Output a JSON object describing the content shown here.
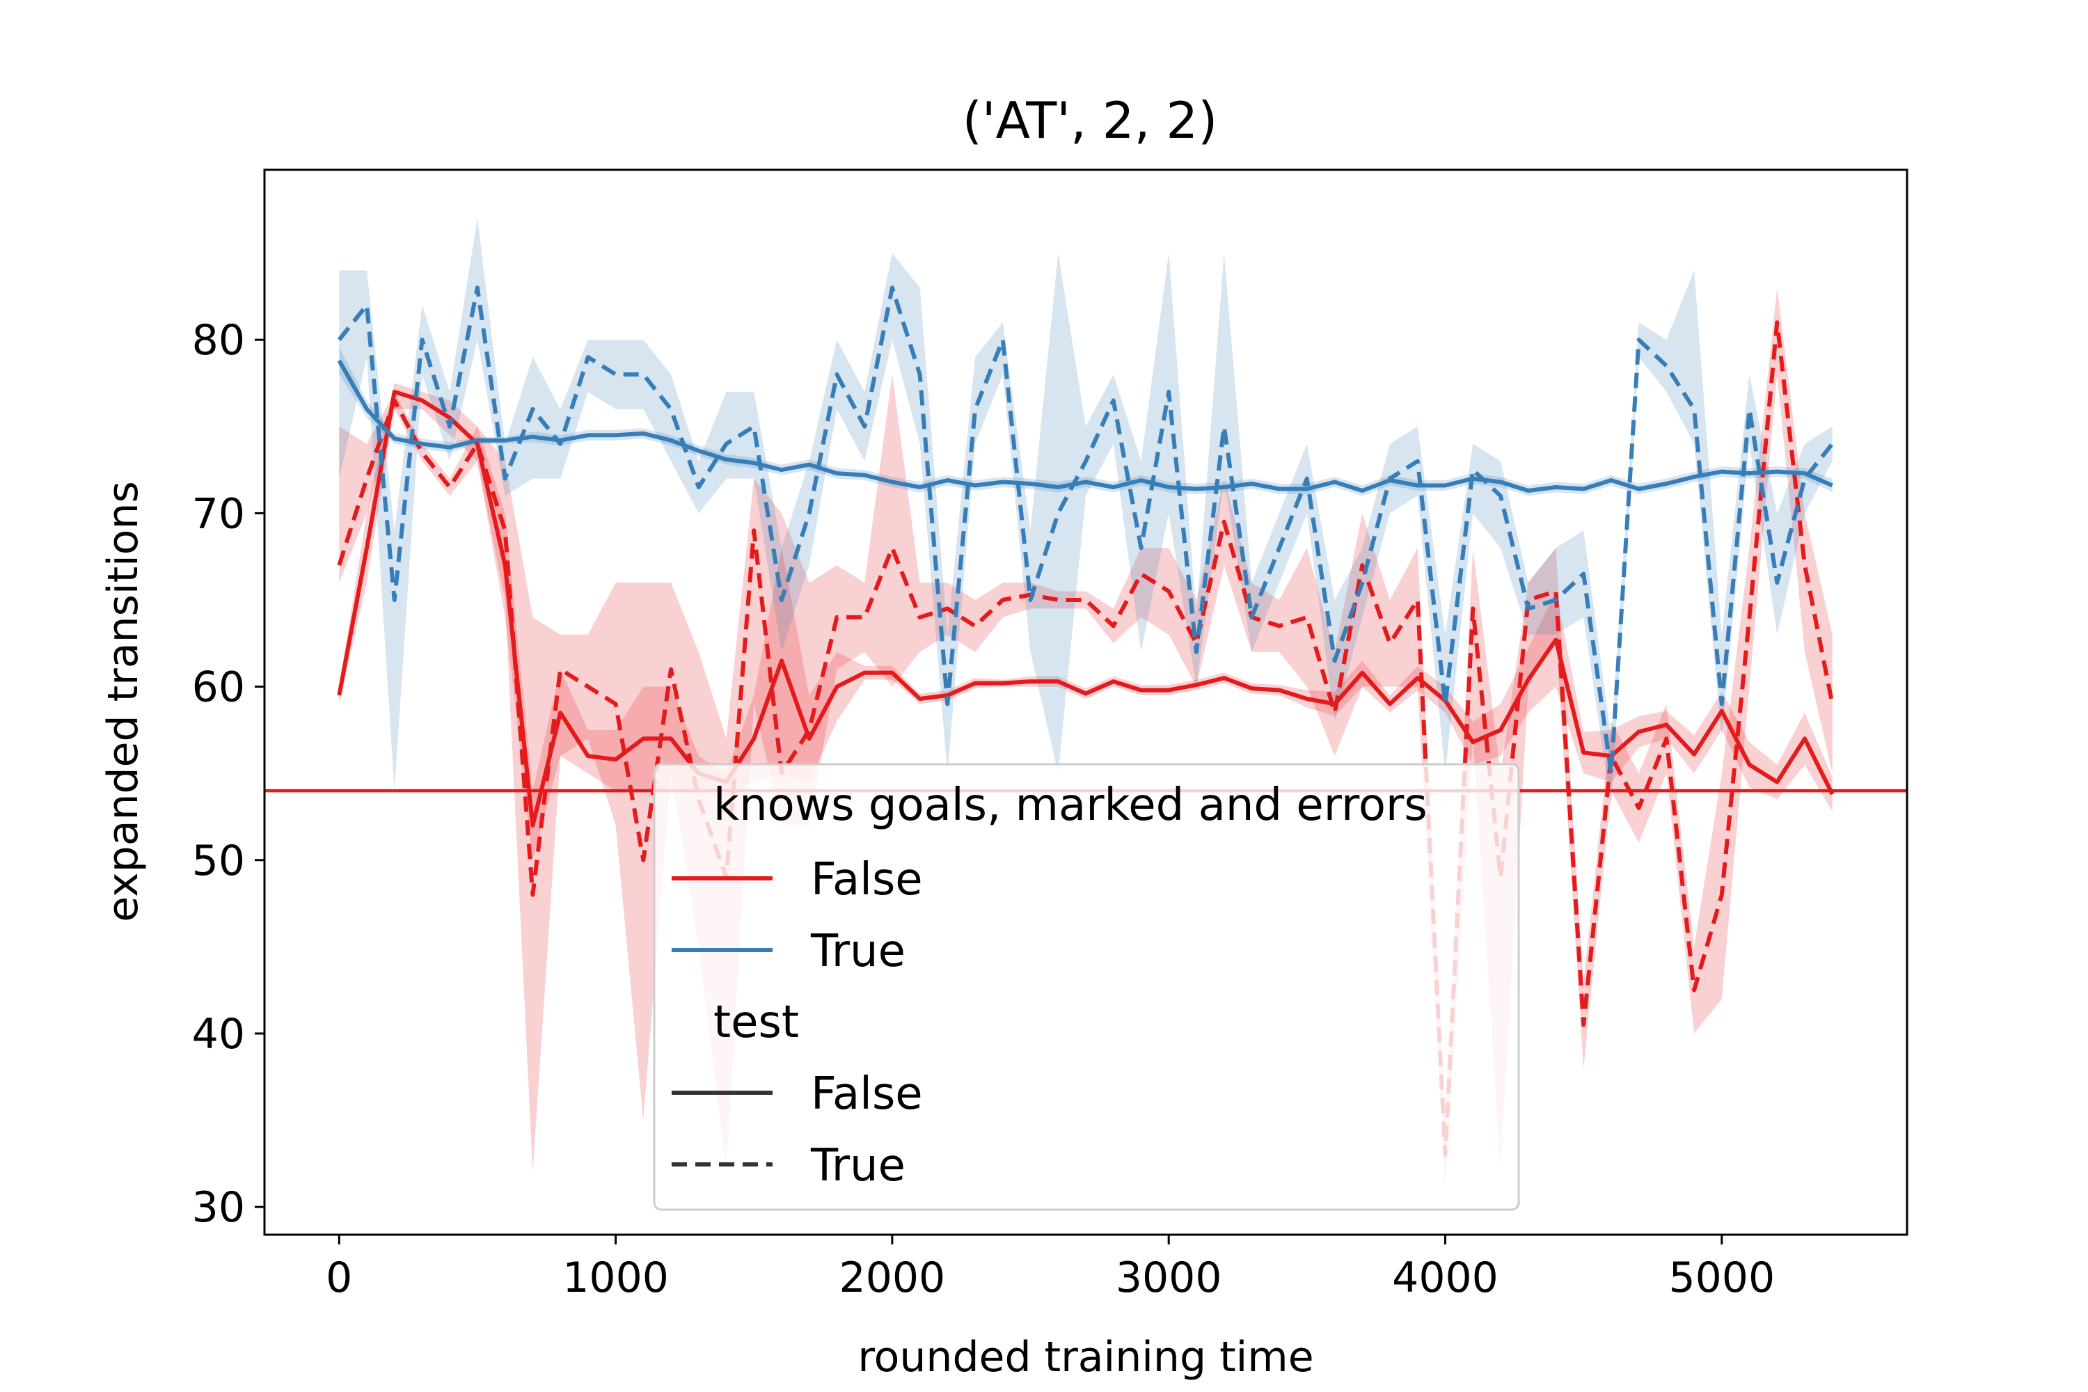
{
  "chart_data": {
    "type": "line",
    "title": "('AT', 2, 2)",
    "xlabel": "rounded training time",
    "ylabel": "expanded transitions",
    "xlim": [
      -270,
      5670
    ],
    "ylim": [
      28.4,
      89.8
    ],
    "xticks": [
      0,
      1000,
      2000,
      3000,
      4000,
      5000
    ],
    "yticks": [
      30,
      40,
      50,
      60,
      70,
      80
    ],
    "grid": false,
    "legend_position": "lower-center",
    "legend": {
      "groups": [
        {
          "title": "knows goals, marked and errors",
          "entries": [
            {
              "label": "False",
              "color": "#e41a1c",
              "dash": "solid"
            },
            {
              "label": "True",
              "color": "#377eb8",
              "dash": "solid"
            }
          ]
        },
        {
          "title": "test",
          "entries": [
            {
              "label": "False",
              "color": "#333333",
              "dash": "solid"
            },
            {
              "label": "True",
              "color": "#333333",
              "dash": "dashed"
            }
          ]
        }
      ]
    },
    "reference_line": {
      "y": 54,
      "color": "#e41a1c"
    },
    "series": [
      {
        "knows_goals": "False",
        "test": "False",
        "color": "#e41a1c",
        "dash": "solid",
        "x": [
          0,
          100,
          200,
          300,
          400,
          500,
          600,
          700,
          800,
          900,
          1000,
          1100,
          1200,
          1300,
          1400,
          1500,
          1600,
          1700,
          1800,
          1900,
          2000,
          2100,
          2200,
          2300,
          2400,
          2500,
          2600,
          2700,
          2800,
          2900,
          3000,
          3100,
          3200,
          3300,
          3400,
          3500,
          3600,
          3700,
          3800,
          3900,
          4000,
          4100,
          4200,
          4300,
          4400,
          4500,
          4600,
          4700,
          4800,
          4900,
          5000,
          5100,
          5200,
          5300,
          5400
        ],
        "y": [
          59.5,
          68,
          77,
          76.5,
          75.5,
          74,
          67,
          52,
          58.5,
          56,
          55.8,
          57,
          57,
          55,
          54.5,
          57,
          61.5,
          57,
          60,
          60.8,
          60.8,
          59.3,
          59.5,
          60.2,
          60.2,
          60.3,
          60.3,
          59.6,
          60.3,
          59.8,
          59.8,
          60.1,
          60.5,
          59.9,
          59.8,
          59.3,
          59,
          60.8,
          59,
          60.5,
          59.2,
          56.8,
          57.5,
          60.4,
          62.7,
          56.2,
          56,
          57.4,
          57.8,
          56.1,
          58.6,
          55.5,
          54.5,
          57,
          53.8
        ],
        "low": [
          59,
          66,
          76,
          76,
          74.5,
          73,
          64,
          50,
          56,
          55,
          54,
          54,
          54,
          54,
          54,
          54.5,
          55,
          54.5,
          58,
          60.4,
          60.4,
          59,
          59.2,
          59.9,
          60,
          60,
          60,
          59.3,
          60,
          59.5,
          59.5,
          59.8,
          60.2,
          59.6,
          59.5,
          58.8,
          58.3,
          60,
          58.5,
          59.8,
          58.5,
          55.5,
          56,
          58.5,
          60,
          55,
          54.5,
          56.5,
          57,
          55,
          57.5,
          54.2,
          53.5,
          55.5,
          52.8
        ],
        "high": [
          60,
          70,
          77.5,
          77,
          76.5,
          75,
          70,
          54,
          61,
          57.5,
          57.5,
          60,
          60,
          56,
          55,
          59.5,
          68,
          59.5,
          62,
          61.2,
          61.2,
          59.6,
          59.8,
          60.5,
          60.4,
          60.6,
          60.6,
          59.9,
          60.6,
          60.1,
          60.1,
          60.4,
          60.8,
          60.2,
          60.1,
          59.8,
          59.7,
          61.5,
          59.5,
          61.2,
          60,
          58,
          59,
          62.2,
          65.5,
          57.4,
          57.5,
          58.3,
          58.6,
          57.2,
          59.7,
          56.8,
          55.5,
          58.5,
          54.8
        ]
      },
      {
        "knows_goals": "False",
        "test": "True",
        "color": "#e41a1c",
        "dash": "dashed",
        "x": [
          0,
          100,
          200,
          300,
          400,
          500,
          600,
          700,
          800,
          900,
          1000,
          1100,
          1200,
          1300,
          1400,
          1500,
          1600,
          1700,
          1800,
          1900,
          2000,
          2100,
          2200,
          2300,
          2400,
          2500,
          2600,
          2700,
          2800,
          2900,
          3000,
          3100,
          3200,
          3300,
          3400,
          3500,
          3600,
          3700,
          3800,
          3900,
          4000,
          4100,
          4200,
          4300,
          4400,
          4500,
          4600,
          4700,
          4800,
          4900,
          5000,
          5100,
          5200,
          5300,
          5400
        ],
        "y": [
          67,
          72,
          76.5,
          73.5,
          71.5,
          74,
          69,
          48,
          61,
          60,
          59,
          50,
          61,
          53.5,
          49,
          69,
          55,
          57.5,
          64,
          64,
          68,
          64,
          64.5,
          63.5,
          65,
          65.3,
          65,
          65,
          63.5,
          66.5,
          65.5,
          62.5,
          69.5,
          64,
          63.5,
          64,
          58.5,
          67,
          62.5,
          65,
          33,
          64.5,
          49,
          65,
          65.5,
          40.5,
          56,
          53,
          57,
          42.5,
          48,
          64,
          81,
          67,
          59
        ],
        "low": [
          66,
          70,
          76,
          73,
          71,
          73,
          65,
          32,
          56,
          57,
          52,
          35,
          55,
          45,
          32,
          59,
          52,
          52,
          61,
          62,
          60,
          62,
          63,
          62,
          64,
          64.5,
          64.5,
          64.5,
          62.5,
          64,
          63,
          60,
          67,
          62,
          62,
          60,
          56,
          60,
          60,
          60,
          31,
          57,
          32,
          60,
          63,
          38,
          54,
          51,
          55,
          40,
          42,
          60,
          78,
          62,
          55
        ],
        "high": [
          75,
          74,
          77,
          74,
          72,
          75,
          73,
          64,
          63,
          63,
          66,
          66,
          66,
          62,
          57,
          72,
          70,
          66,
          67,
          66,
          78,
          66,
          66,
          65,
          66,
          66,
          65.5,
          65.5,
          64.5,
          68,
          68,
          65,
          72,
          66,
          65,
          68,
          62,
          70,
          65,
          68,
          35,
          68,
          55,
          66,
          68,
          43,
          58,
          55,
          59,
          45,
          55,
          68,
          83,
          70,
          63
        ]
      },
      {
        "knows_goals": "True",
        "test": "False",
        "color": "#377eb8",
        "dash": "solid",
        "x": [
          0,
          100,
          200,
          300,
          400,
          500,
          600,
          700,
          800,
          900,
          1000,
          1100,
          1200,
          1300,
          1400,
          1500,
          1600,
          1700,
          1800,
          1900,
          2000,
          2100,
          2200,
          2300,
          2400,
          2500,
          2600,
          2700,
          2800,
          2900,
          3000,
          3100,
          3200,
          3300,
          3400,
          3500,
          3600,
          3700,
          3800,
          3900,
          4000,
          4100,
          4200,
          4300,
          4400,
          4500,
          4600,
          4700,
          4800,
          4900,
          5000,
          5100,
          5200,
          5300,
          5400
        ],
        "y": [
          78.8,
          76,
          74.3,
          74,
          73.8,
          74.2,
          74.2,
          74.4,
          74.2,
          74.5,
          74.5,
          74.6,
          74.2,
          73.6,
          73.1,
          72.9,
          72.5,
          72.8,
          72.3,
          72.2,
          71.8,
          71.5,
          71.9,
          71.6,
          71.8,
          71.7,
          71.5,
          71.8,
          71.5,
          71.9,
          71.5,
          71.4,
          71.5,
          71.7,
          71.4,
          71.4,
          71.8,
          71.3,
          71.9,
          71.6,
          71.6,
          72,
          71.8,
          71.3,
          71.5,
          71.4,
          71.9,
          71.4,
          71.7,
          72.1,
          72.4,
          72.3,
          72.4,
          72.3,
          71.6
        ],
        "low": [
          78,
          75.5,
          74,
          73.7,
          73.5,
          74,
          74,
          74.1,
          73.9,
          74.2,
          74.2,
          74.3,
          73.9,
          73.3,
          72.8,
          72.6,
          72.2,
          72.5,
          72,
          71.9,
          71.5,
          71.2,
          71.6,
          71.3,
          71.5,
          71.4,
          71.2,
          71.5,
          71.2,
          71.6,
          71.2,
          71.1,
          71.2,
          71.4,
          71.1,
          71.1,
          71.5,
          71,
          71.6,
          71.3,
          71.3,
          71.7,
          71.5,
          71,
          71.2,
          71.1,
          71.6,
          71.1,
          71.4,
          71.8,
          72.1,
          72,
          72.1,
          72,
          71.2
        ],
        "high": [
          79.6,
          76.5,
          74.6,
          74.3,
          74.1,
          74.4,
          74.4,
          74.7,
          74.5,
          74.8,
          74.8,
          74.9,
          74.5,
          73.9,
          73.4,
          73.2,
          72.8,
          73.1,
          72.6,
          72.5,
          72.1,
          71.8,
          72.2,
          71.9,
          72.1,
          72,
          71.8,
          72.1,
          71.8,
          72.2,
          71.8,
          71.7,
          71.8,
          72,
          71.7,
          71.7,
          72.1,
          71.6,
          72.2,
          71.9,
          71.9,
          72.3,
          72.1,
          71.6,
          71.8,
          71.7,
          72.2,
          71.7,
          72,
          72.4,
          72.7,
          72.6,
          72.7,
          72.6,
          72
        ]
      },
      {
        "knows_goals": "True",
        "test": "True",
        "color": "#377eb8",
        "dash": "dashed",
        "x": [
          0,
          100,
          200,
          300,
          400,
          500,
          600,
          700,
          800,
          900,
          1000,
          1100,
          1200,
          1300,
          1400,
          1500,
          1600,
          1700,
          1800,
          1900,
          2000,
          2100,
          2200,
          2300,
          2400,
          2500,
          2600,
          2700,
          2800,
          2900,
          3000,
          3100,
          3200,
          3300,
          3400,
          3500,
          3600,
          3700,
          3800,
          3900,
          4000,
          4100,
          4200,
          4300,
          4400,
          4500,
          4600,
          4700,
          4800,
          4900,
          5000,
          5100,
          5200,
          5300,
          5400
        ],
        "y": [
          80,
          82,
          65,
          80,
          75,
          83,
          72,
          76,
          74,
          79,
          78,
          78,
          76,
          71.5,
          74,
          75,
          65,
          70,
          78,
          75,
          83,
          78,
          59,
          76,
          80,
          65,
          70,
          73,
          76.5,
          68,
          77,
          62,
          75,
          64,
          68,
          72,
          61.5,
          66,
          72,
          73,
          59,
          72.5,
          71,
          64.5,
          65,
          66.5,
          55,
          80,
          78.5,
          76,
          59,
          76,
          66,
          72,
          74
        ],
        "low": [
          72,
          79,
          54,
          78,
          73,
          80,
          71,
          72,
          72,
          77,
          76,
          76,
          73,
          70,
          72,
          72,
          62,
          67,
          76,
          73,
          80,
          74,
          55,
          74,
          78,
          62,
          55,
          71,
          74,
          62,
          70,
          60,
          72,
          62,
          66,
          70,
          58,
          64,
          70,
          71,
          55,
          70,
          68,
          63,
          63,
          64,
          53,
          79,
          77,
          74,
          57,
          74,
          63,
          70,
          73
        ],
        "high": [
          84,
          84,
          69,
          82,
          77,
          87,
          74,
          79,
          76,
          80,
          80,
          80,
          78,
          73,
          77,
          77,
          68,
          73,
          80,
          77,
          85,
          83,
          63,
          79,
          81,
          69,
          85,
          75,
          78,
          73,
          85,
          64,
          85,
          66,
          70,
          74,
          65,
          68,
          74,
          75,
          63,
          74,
          73,
          66,
          68,
          69,
          57,
          81,
          80,
          84,
          63,
          78,
          70,
          74,
          75
        ]
      }
    ]
  }
}
